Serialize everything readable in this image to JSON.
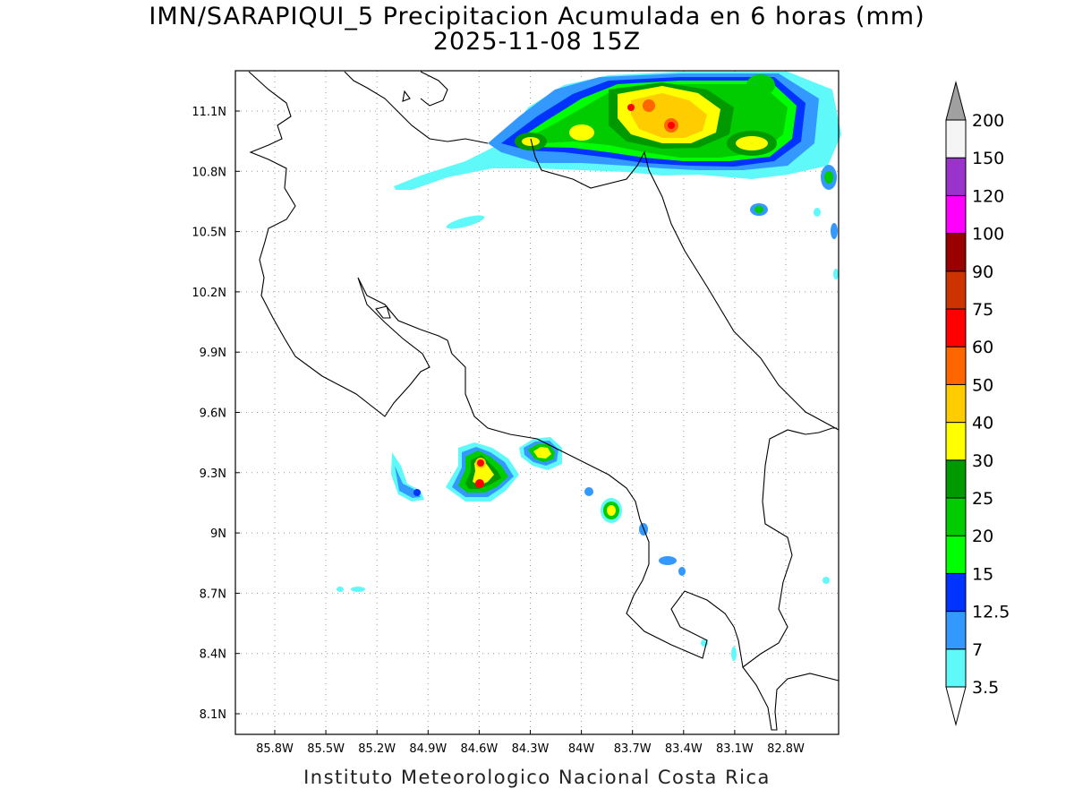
{
  "title_line1": "IMN/SARAPIQUI_5 Precipitacion Acumulada en 6 horas (mm)",
  "title_line2": "2025-11-08 15Z",
  "footer": "Instituto Meteorologico Nacional Costa Rica",
  "lon_ticks": [
    "85.8W",
    "85.5W",
    "85.2W",
    "84.9W",
    "84.6W",
    "84.3W",
    "84W",
    "83.7W",
    "83.4W",
    "83.1W",
    "82.8W"
  ],
  "lat_ticks": [
    "11.1N",
    "10.8N",
    "10.5N",
    "10.2N",
    "9.9N",
    "9.6N",
    "9.3N",
    "9N",
    "8.7N",
    "8.4N",
    "8.1N"
  ],
  "colorbar": {
    "labels": [
      "3.5",
      "7",
      "12.5",
      "15",
      "20",
      "25",
      "30",
      "40",
      "50",
      "60",
      "75",
      "90",
      "100",
      "120",
      "150",
      "200"
    ],
    "colors": [
      "#5ff9f9",
      "#3399ff",
      "#0033ff",
      "#00ff00",
      "#00cc00",
      "#009900",
      "#ffff00",
      "#ffcc00",
      "#ff6600",
      "#ff0000",
      "#cc3300",
      "#990000",
      "#ff00ff",
      "#9933cc",
      "#f5f5f5",
      "#a0a0a0"
    ]
  },
  "legend_colors": {
    "3.5": "#5ff9f9",
    "7": "#3399ff",
    "12.5": "#0033ff",
    "15": "#00ff00",
    "20": "#00cc00",
    "25": "#009900",
    "30": "#ffff00",
    "40": "#ffcc00",
    "50": "#ff6600",
    "60": "#ff0000"
  }
}
